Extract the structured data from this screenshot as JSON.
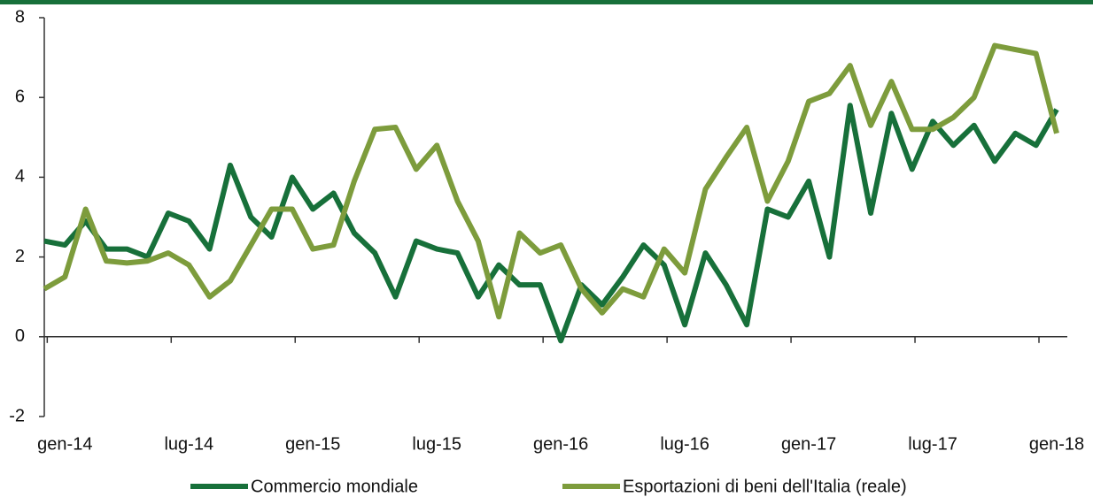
{
  "chart_data": {
    "type": "line",
    "categories": [
      null,
      "gen-14",
      null,
      null,
      null,
      null,
      null,
      "lug-14",
      null,
      null,
      null,
      null,
      null,
      "gen-15",
      null,
      null,
      null,
      null,
      null,
      "lug-15",
      null,
      null,
      null,
      null,
      null,
      "gen-16",
      null,
      null,
      null,
      null,
      null,
      "lug-16",
      null,
      null,
      null,
      null,
      null,
      "gen-17",
      null,
      null,
      null,
      null,
      null,
      "lug-17",
      null,
      null,
      null,
      null,
      null,
      "gen-18"
    ],
    "series": [
      {
        "name": "Commercio mondiale",
        "color": "#17703a",
        "values": [
          2.4,
          2.3,
          2.9,
          2.2,
          2.2,
          2.0,
          3.1,
          2.9,
          2.2,
          4.3,
          3.0,
          2.5,
          4.0,
          3.2,
          3.6,
          2.6,
          2.1,
          1.0,
          2.4,
          2.2,
          2.1,
          1.0,
          1.8,
          1.3,
          1.3,
          -0.1,
          1.3,
          0.8,
          1.5,
          2.3,
          1.8,
          0.3,
          2.1,
          1.3,
          0.3,
          3.2,
          3.0,
          3.9,
          2.0,
          5.8,
          3.1,
          5.6,
          4.2,
          5.4,
          4.8,
          5.3,
          4.4,
          5.1,
          4.8,
          5.7
        ]
      },
      {
        "name": "Esportazioni di beni dell'Italia (reale)",
        "color": "#7d9c3c",
        "values": [
          1.2,
          1.5,
          3.2,
          1.9,
          1.85,
          1.9,
          2.1,
          1.8,
          1.0,
          1.4,
          2.3,
          3.2,
          3.2,
          2.2,
          2.3,
          3.9,
          5.2,
          5.25,
          4.2,
          4.8,
          3.4,
          2.4,
          0.5,
          2.6,
          2.1,
          2.3,
          1.2,
          0.6,
          1.2,
          1.0,
          2.2,
          1.6,
          3.7,
          4.5,
          5.25,
          3.4,
          4.4,
          5.9,
          6.1,
          6.8,
          5.3,
          6.4,
          5.2,
          5.2,
          5.5,
          6.0,
          7.3,
          7.2,
          7.1,
          5.1
        ]
      }
    ],
    "ylim": [
      -2,
      8
    ],
    "yticks": [
      -2,
      0,
      2,
      4,
      6,
      8
    ]
  }
}
